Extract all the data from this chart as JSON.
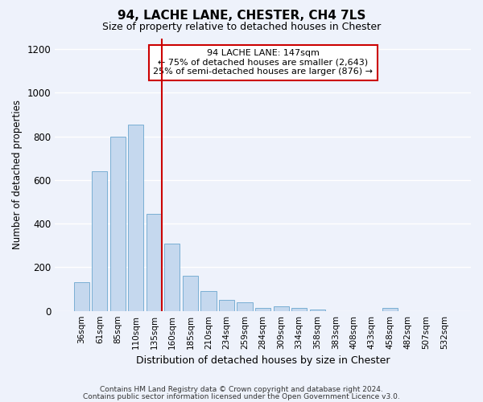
{
  "title": "94, LACHE LANE, CHESTER, CH4 7LS",
  "subtitle": "Size of property relative to detached houses in Chester",
  "xlabel": "Distribution of detached houses by size in Chester",
  "ylabel": "Number of detached properties",
  "bar_labels": [
    "36sqm",
    "61sqm",
    "85sqm",
    "110sqm",
    "135sqm",
    "160sqm",
    "185sqm",
    "210sqm",
    "234sqm",
    "259sqm",
    "284sqm",
    "309sqm",
    "334sqm",
    "358sqm",
    "383sqm",
    "408sqm",
    "433sqm",
    "458sqm",
    "482sqm",
    "507sqm",
    "532sqm"
  ],
  "bar_values": [
    130,
    640,
    800,
    855,
    445,
    310,
    160,
    90,
    50,
    40,
    15,
    20,
    12,
    5,
    0,
    0,
    0,
    12,
    0,
    0,
    0
  ],
  "bar_color": "#c5d8ee",
  "bar_edge_color": "#7aafd4",
  "background_color": "#eef2fb",
  "grid_color": "#ffffff",
  "red_line_label": "94 LACHE LANE: 147sqm",
  "annotation_line1": "← 75% of detached houses are smaller (2,643)",
  "annotation_line2": "25% of semi-detached houses are larger (876) →",
  "annotation_box_color": "#ffffff",
  "annotation_box_edge": "#cc0000",
  "red_line_color": "#cc0000",
  "ylim": [
    0,
    1250
  ],
  "yticks": [
    0,
    200,
    400,
    600,
    800,
    1000,
    1200
  ],
  "footnote1": "Contains HM Land Registry data © Crown copyright and database right 2024.",
  "footnote2": "Contains public sector information licensed under the Open Government Licence v3.0."
}
